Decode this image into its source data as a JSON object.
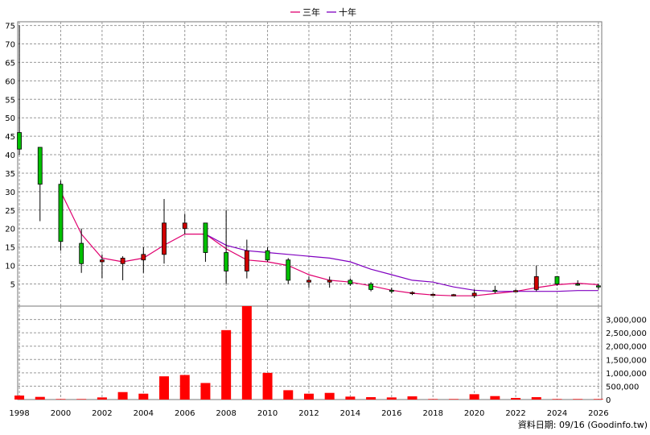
{
  "legend": [
    {
      "label": "三年",
      "color": "#e0006f"
    },
    {
      "label": "十年",
      "color": "#8000c0"
    }
  ],
  "credit": "資料日期: 09/16 (Goodinfo.tw)",
  "chart_data": [
    {
      "type": "candlestick",
      "x_ticks": [
        1998,
        2000,
        2002,
        2004,
        2006,
        2008,
        2010,
        2012,
        2014,
        2016,
        2018,
        2020,
        2022,
        2024,
        2026
      ],
      "y_ticks": [
        5,
        10,
        15,
        20,
        25,
        30,
        35,
        40,
        45,
        50,
        55,
        60,
        65,
        70,
        75
      ],
      "xlim": [
        1997.92,
        2026.16
      ],
      "ylim": [
        -1,
        76
      ],
      "grid": true,
      "legend_position": "top",
      "up_color": "#00c000",
      "down_color": "#d00000",
      "candles": [
        {
          "year": 1998,
          "open": 41.5,
          "close": 46,
          "high": 75,
          "low": 40
        },
        {
          "year": 1999,
          "open": 32,
          "close": 42,
          "high": 42,
          "low": 22
        },
        {
          "year": 2000,
          "open": 16.5,
          "close": 32,
          "high": 33,
          "low": 14
        },
        {
          "year": 2001,
          "open": 10.5,
          "close": 16,
          "high": 20,
          "low": 8
        },
        {
          "year": 2002,
          "open": 11.5,
          "close": 11,
          "high": 13,
          "low": 6.5
        },
        {
          "year": 2003,
          "open": 12,
          "close": 10.5,
          "high": 12.5,
          "low": 6
        },
        {
          "year": 2004,
          "open": 13,
          "close": 11.5,
          "high": 15,
          "low": 8
        },
        {
          "year": 2005,
          "open": 21.5,
          "close": 13,
          "high": 28,
          "low": 10.5
        },
        {
          "year": 2006,
          "open": 21.5,
          "close": 20,
          "high": 24,
          "low": 18.5
        },
        {
          "year": 2007,
          "open": 13.5,
          "close": 21.5,
          "high": 21.5,
          "low": 11
        },
        {
          "year": 2008,
          "open": 8.5,
          "close": 13.5,
          "high": 25,
          "low": 5
        },
        {
          "year": 2009,
          "open": 14,
          "close": 8.5,
          "high": 17,
          "low": 6.5
        },
        {
          "year": 2010,
          "open": 11.5,
          "close": 14,
          "high": 15,
          "low": 11
        },
        {
          "year": 2011,
          "open": 6,
          "close": 11.5,
          "high": 12,
          "low": 5
        },
        {
          "year": 2012,
          "open": 6,
          "close": 5.5,
          "high": 7,
          "low": 4
        },
        {
          "year": 2013,
          "open": 6,
          "close": 5.5,
          "high": 7,
          "low": 4
        },
        {
          "year": 2014,
          "open": 5,
          "close": 6,
          "high": 6.5,
          "low": 4.5
        },
        {
          "year": 2015,
          "open": 3.5,
          "close": 5,
          "high": 5.5,
          "low": 3
        },
        {
          "year": 2016,
          "open": 3,
          "close": 3.3,
          "high": 4,
          "low": 2.5
        },
        {
          "year": 2017,
          "open": 2.7,
          "close": 2.5,
          "high": 3,
          "low": 2
        },
        {
          "year": 2018,
          "open": 2.2,
          "close": 2.1,
          "high": 2.4,
          "low": 1.8
        },
        {
          "year": 2019,
          "open": 2.1,
          "close": 2,
          "high": 2.3,
          "low": 1.8
        },
        {
          "year": 2020,
          "open": 2.5,
          "close": 1.8,
          "high": 3.5,
          "low": 1.2
        },
        {
          "year": 2021,
          "open": 3,
          "close": 3.3,
          "high": 4.5,
          "low": 2.5
        },
        {
          "year": 2022,
          "open": 3.2,
          "close": 3,
          "high": 3.5,
          "low": 2.8
        },
        {
          "year": 2023,
          "open": 7,
          "close": 3.5,
          "high": 10,
          "low": 3
        },
        {
          "year": 2024,
          "open": 5,
          "close": 7,
          "high": 7,
          "low": 4.5
        },
        {
          "year": 2025,
          "open": 5,
          "close": 5,
          "high": 6,
          "low": 4.5
        },
        {
          "year": 2026,
          "open": 4.5,
          "close": 4.5,
          "high": 5,
          "low": 3.5
        }
      ],
      "series": [
        {
          "name": "三年",
          "color": "#e0006f",
          "points": [
            [
              2000,
              30
            ],
            [
              2001,
              18.5
            ],
            [
              2002,
              12
            ],
            [
              2003,
              11
            ],
            [
              2004,
              12
            ],
            [
              2005,
              15.5
            ],
            [
              2006,
              18.5
            ],
            [
              2007,
              18.5
            ],
            [
              2008,
              14.5
            ],
            [
              2009,
              11.5
            ],
            [
              2010,
              11
            ],
            [
              2011,
              10
            ],
            [
              2012,
              7.5
            ],
            [
              2013,
              6
            ],
            [
              2014,
              5.5
            ],
            [
              2015,
              4.5
            ],
            [
              2016,
              3.3
            ],
            [
              2017,
              2.5
            ],
            [
              2018,
              2
            ],
            [
              2019,
              1.8
            ],
            [
              2020,
              1.8
            ],
            [
              2021,
              2.4
            ],
            [
              2022,
              3
            ],
            [
              2023,
              4
            ],
            [
              2024,
              4.8
            ],
            [
              2025,
              5.2
            ],
            [
              2026,
              4.8
            ]
          ]
        },
        {
          "name": "十年",
          "color": "#8000c0",
          "points": [
            [
              2007,
              18.5
            ],
            [
              2008,
              15.5
            ],
            [
              2009,
              14
            ],
            [
              2010,
              13.5
            ],
            [
              2011,
              13
            ],
            [
              2012,
              12.5
            ],
            [
              2013,
              12
            ],
            [
              2014,
              11
            ],
            [
              2015,
              9
            ],
            [
              2016,
              7.5
            ],
            [
              2017,
              6
            ],
            [
              2018,
              5.5
            ],
            [
              2019,
              4.2
            ],
            [
              2020,
              3.3
            ],
            [
              2021,
              3
            ],
            [
              2022,
              3
            ],
            [
              2023,
              3
            ],
            [
              2024,
              3
            ],
            [
              2025,
              3.2
            ],
            [
              2026,
              3.2
            ]
          ]
        }
      ]
    },
    {
      "type": "bar",
      "name": "volume",
      "color": "#ff0000",
      "y_ticks": [
        0,
        500000,
        1000000,
        1500000,
        2000000,
        2500000,
        3000000
      ],
      "y_tick_labels": [
        "0",
        "500,000",
        "1,000,000",
        "1,500,000",
        "2,000,000",
        "2,500,000",
        "3,000,000"
      ],
      "ylim": [
        0,
        3500000
      ],
      "grid": true,
      "x": [
        1998,
        1999,
        2000,
        2001,
        2002,
        2003,
        2004,
        2005,
        2006,
        2007,
        2008,
        2009,
        2010,
        2011,
        2012,
        2013,
        2014,
        2015,
        2016,
        2017,
        2018,
        2019,
        2020,
        2021,
        2022,
        2023,
        2024,
        2025,
        2026
      ],
      "values": [
        150000,
        100000,
        20000,
        20000,
        80000,
        280000,
        220000,
        870000,
        920000,
        620000,
        2600000,
        3500000,
        1000000,
        350000,
        220000,
        250000,
        110000,
        90000,
        80000,
        120000,
        20000,
        20000,
        200000,
        130000,
        60000,
        90000,
        20000,
        20000,
        20000
      ]
    }
  ]
}
